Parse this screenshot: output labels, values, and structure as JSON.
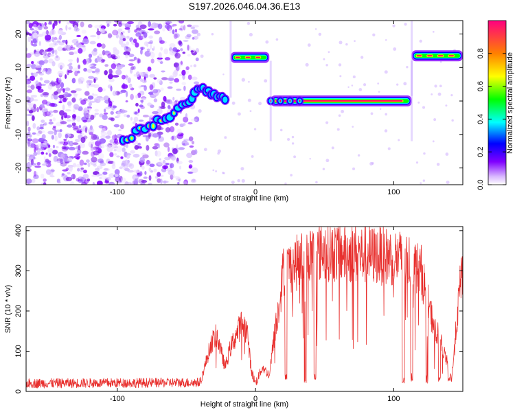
{
  "title": "S197.2026.046.04.36.E13",
  "chart_data": [
    {
      "type": "heatmap",
      "xlabel": "Height of straight line (km)",
      "ylabel": "Frequency (Hz)",
      "xlim": [
        -166,
        150
      ],
      "ylim": [
        -25,
        24
      ],
      "xticks": [
        -100,
        0,
        100
      ],
      "yticks": [
        -20,
        -10,
        0,
        10,
        20
      ],
      "colorbar": {
        "label": "Normalized spectral amplitude",
        "range": [
          0.0,
          1.0
        ],
        "ticks": [
          0.0,
          0.2,
          0.4,
          0.6,
          0.8
        ],
        "colormap": [
          "#ffffff",
          "#d9b8ff",
          "#8000ff",
          "#0000ff",
          "#00ffff",
          "#00ff00",
          "#ffff00",
          "#ff8000",
          "#ff0080"
        ]
      },
      "features": [
        {
          "desc": "noise",
          "x": [
            -166,
            -42
          ],
          "y": [
            -25,
            24
          ]
        },
        {
          "desc": "track",
          "points": [
            [
              -96,
              -12
            ],
            [
              -80,
              -8
            ],
            [
              -65,
              -5
            ],
            [
              -50,
              -1
            ],
            [
              -40,
              4
            ],
            [
              -30,
              1.5
            ],
            [
              -20,
              0
            ]
          ]
        },
        {
          "desc": "line",
          "x": [
            -18,
            10
          ],
          "y": 13
        },
        {
          "desc": "line",
          "x": [
            11,
            113
          ],
          "y": 0
        },
        {
          "desc": "line",
          "x": [
            113,
            150
          ],
          "y": 13.5
        }
      ]
    },
    {
      "type": "line",
      "xlabel": "Height of straight line (km)",
      "ylabel": "SNR (10 * v/v)",
      "xlim": [
        -166,
        150
      ],
      "ylim": [
        0,
        410
      ],
      "xticks": [
        -100,
        0,
        100
      ],
      "yticks": [
        0,
        100,
        200,
        300,
        400
      ],
      "color": "#e8302e",
      "envelope": [
        [
          -166,
          20
        ],
        [
          -40,
          22
        ],
        [
          -32,
          120
        ],
        [
          -28,
          140
        ],
        [
          -22,
          60
        ],
        [
          -18,
          110
        ],
        [
          -10,
          170
        ],
        [
          -6,
          150
        ],
        [
          -3,
          50
        ],
        [
          0,
          20
        ],
        [
          5,
          60
        ],
        [
          10,
          40
        ],
        [
          14,
          150
        ],
        [
          18,
          240
        ],
        [
          20,
          300
        ],
        [
          30,
          320
        ],
        [
          40,
          340
        ],
        [
          50,
          350
        ],
        [
          60,
          345
        ],
        [
          80,
          340
        ],
        [
          100,
          335
        ],
        [
          110,
          325
        ],
        [
          120,
          300
        ],
        [
          126,
          200
        ],
        [
          132,
          140
        ],
        [
          138,
          80
        ],
        [
          142,
          30
        ],
        [
          145,
          150
        ],
        [
          148,
          260
        ],
        [
          150,
          310
        ]
      ],
      "dips": [
        [
          22,
          30
        ],
        [
          36,
          20
        ],
        [
          43,
          25
        ],
        [
          107,
          15
        ],
        [
          113,
          25
        ],
        [
          124,
          20
        ],
        [
          133,
          25
        ],
        [
          140,
          15
        ]
      ]
    }
  ]
}
